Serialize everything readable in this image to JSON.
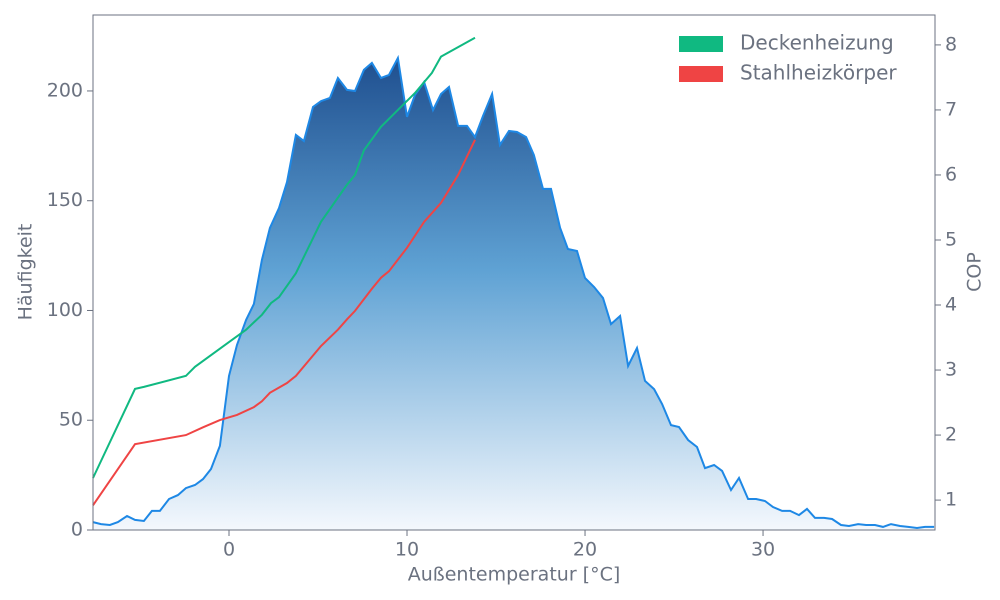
{
  "chart_data": {
    "type": "area",
    "xlabel": "Außentemperatur [°C]",
    "ylabel": "Häufigkeit",
    "y2label": "COP",
    "color": "#1e88e5",
    "xlim": [
      -7.64,
      39.66
    ],
    "ylim": [
      0,
      234.6
    ],
    "y2lim": [
      0.54,
      8.46
    ],
    "xticks": [
      0,
      10,
      20,
      30
    ],
    "yticks": [
      0,
      50,
      100,
      150,
      200
    ],
    "y2ticks": [
      1,
      2,
      3,
      4,
      5,
      6,
      7,
      8
    ],
    "legend": "upper right",
    "x": [
      -7.64,
      -7.19,
      -6.69,
      -6.24,
      -5.73,
      -5.28,
      -4.78,
      -4.33,
      -3.88,
      -3.37,
      -2.87,
      -2.42,
      -1.91,
      -1.46,
      -1.01,
      -0.51,
      0,
      0.45,
      0.96,
      1.4,
      1.85,
      2.3,
      2.81,
      3.26,
      3.76,
      4.21,
      4.72,
      5.17,
      5.67,
      6.12,
      6.63,
      7.08,
      7.58,
      8.03,
      8.54,
      8.99,
      9.49,
      10,
      10.45,
      10.96,
      11.46,
      11.91,
      12.36,
      12.87,
      13.37,
      13.82,
      14.27,
      14.78,
      15.22,
      15.73,
      16.18,
      16.69,
      17.13,
      17.64,
      18.09,
      18.6,
      19.04,
      19.55,
      20,
      20.51,
      21.01,
      21.46,
      21.97,
      22.42,
      22.92,
      23.37,
      23.88,
      24.33,
      24.83,
      25.28,
      25.79,
      26.29,
      26.74,
      27.25,
      27.7,
      28.2,
      28.65,
      29.16,
      29.61,
      30.11,
      30.56,
      31.07,
      31.52,
      32.02,
      32.47,
      32.92,
      33.43,
      33.88,
      34.38,
      34.83,
      35.34,
      35.79,
      36.29,
      36.74,
      37.19,
      37.7,
      38.15,
      38.65,
      39.1,
      39.61
    ],
    "values": [
      3.6,
      2.7,
      2.3,
      3.6,
      6.4,
      4.6,
      4.1,
      8.7,
      8.7,
      14.1,
      15.9,
      19.1,
      20.5,
      23.2,
      27.8,
      38.3,
      70.2,
      84.3,
      95.7,
      103,
      123,
      137.6,
      146.7,
      158.5,
      180,
      177.2,
      192.7,
      195.4,
      196.8,
      205.9,
      200.5,
      200,
      209.6,
      212.8,
      205.9,
      207.3,
      215,
      188.2,
      198.2,
      204.1,
      191.3,
      198.6,
      201.8,
      184.1,
      184.1,
      179,
      188.6,
      198.6,
      175.4,
      181.8,
      181.3,
      179,
      170.8,
      155.4,
      155.4,
      137.6,
      128,
      127.1,
      114.8,
      110.7,
      105.7,
      93.8,
      97.5,
      74.7,
      82.9,
      67.9,
      64.2,
      57.4,
      47.8,
      46.9,
      41,
      37.8,
      28.2,
      29.6,
      26.9,
      18.2,
      23.7,
      14.1,
      14.1,
      13.2,
      10.5,
      8.7,
      8.7,
      6.8,
      9.6,
      5.5,
      5.5,
      5,
      2.3,
      1.8,
      2.7,
      2.3,
      2.3,
      1.4,
      2.7,
      1.8,
      1.4,
      0.9,
      1.4,
      1.4
    ],
    "series": [
      {
        "name": "Deckenheizung",
        "color": "#10b981",
        "axis": "y2",
        "x": [
          -7.64,
          -5.28,
          -4.78,
          -2.42,
          -1.91,
          0,
          0.96,
          1.85,
          2.36,
          2.81,
          3.76,
          5.17,
          6.63,
          7.08,
          7.58,
          8.54,
          9.49,
          10.45,
          11.4,
          11.91,
          13.82
        ],
        "values": [
          1.34,
          2.71,
          2.74,
          2.91,
          3.05,
          3.43,
          3.62,
          3.85,
          4.03,
          4.12,
          4.49,
          5.28,
          5.85,
          6.0,
          6.38,
          6.74,
          7.0,
          7.26,
          7.57,
          7.82,
          8.11
        ]
      },
      {
        "name": "Stahlheizkörper",
        "color": "#ef4444",
        "axis": "y2",
        "x": [
          -7.64,
          -5.28,
          -2.42,
          -1.46,
          -0.51,
          0.45,
          1.4,
          1.85,
          2.3,
          3.26,
          3.76,
          5.17,
          6.12,
          6.63,
          7.08,
          8.03,
          8.54,
          8.99,
          10,
          10.96,
          11.91,
          12.87,
          13.82
        ],
        "values": [
          0.92,
          1.86,
          2.0,
          2.12,
          2.23,
          2.31,
          2.43,
          2.52,
          2.65,
          2.8,
          2.91,
          3.37,
          3.62,
          3.78,
          3.91,
          4.25,
          4.42,
          4.52,
          4.88,
          5.28,
          5.57,
          6.0,
          6.54
        ]
      }
    ]
  }
}
